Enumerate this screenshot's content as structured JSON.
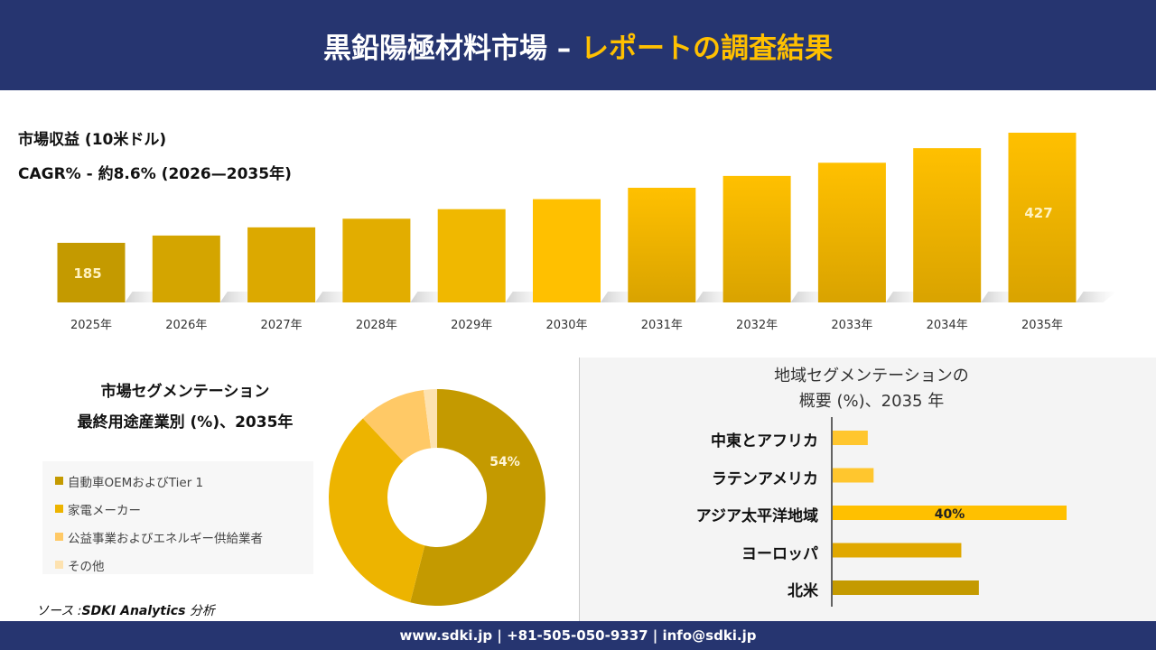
{
  "header": {
    "title_main": "黒鉛陽極材料市場 –",
    "title_highlight": "レポートの調査結果"
  },
  "colors": {
    "header_bg": "#263570",
    "accent": "#FFC000"
  },
  "chart_data": [
    {
      "type": "bar",
      "title": "市場収益 (10米ドル)",
      "subtitle": "CAGR% - 約8.6% (2026—2035年)",
      "categories": [
        "2025年",
        "2026年",
        "2027年",
        "2028年",
        "2029年",
        "2030年",
        "2031年",
        "2032年",
        "2033年",
        "2034年",
        "2035年"
      ],
      "values": [
        185,
        201,
        219,
        238,
        259,
        281,
        306,
        332,
        361,
        393,
        427
      ],
      "data_labels": {
        "0": "185",
        "10": "427"
      },
      "colors": [
        "#C49A00",
        "#D4A500",
        "#DCA900",
        "#E2AD00",
        "#F0B800",
        "#FFC000",
        "#F2B500",
        "#F2B500",
        "#F2B500",
        "#F2B500",
        "#F2B500"
      ]
    },
    {
      "type": "pie",
      "title_line1": "市場セグメンテーション",
      "title_line2": "最終用途産業別 (%)、2035年",
      "labels": [
        "自動車OEMおよびTier 1",
        "家電メーカー",
        "公益事業およびエネルギー供給業者",
        "その他"
      ],
      "values": [
        54,
        34,
        10,
        2
      ],
      "data_labels": [
        "54%",
        "",
        "",
        ""
      ],
      "colors": [
        "#C49A00",
        "#EDB400",
        "#FFC966",
        "#FDE2B0"
      ]
    },
    {
      "type": "bar",
      "orientation": "horizontal",
      "title_line1": "地域セグメンテーションの",
      "title_line2": "概要 (%)、2035 年",
      "categories": [
        "中東とアフリカ",
        "ラテンアメリカ",
        "アジア太平洋地域",
        "ヨーロッパ",
        "北米"
      ],
      "values": [
        6,
        7,
        40,
        22,
        25
      ],
      "data_labels": [
        "",
        "",
        "40%",
        "",
        ""
      ],
      "colors": [
        "#FFC62E",
        "#FFC62E",
        "#FFC000",
        "#E0A800",
        "#C49A00"
      ]
    }
  ],
  "source": {
    "prefix": "ソース :",
    "name": "SDKI Analytics",
    "suffix": "分析"
  },
  "footer": {
    "text": "www.sdki.jp | +81-505-050-9337 | info@sdki.jp"
  }
}
